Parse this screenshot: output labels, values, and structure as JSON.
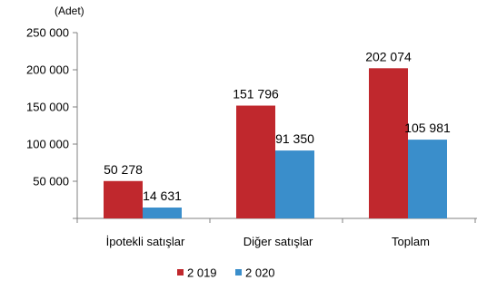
{
  "chart_data": {
    "type": "bar",
    "unit_label": "(Adet)",
    "categories": [
      "İpotekli satışlar",
      "Diğer satışlar",
      "Toplam"
    ],
    "series": [
      {
        "name": "2 019",
        "color": "#C0282D",
        "values": [
          50278,
          151796,
          202074
        ],
        "value_labels": [
          "50 278",
          "151 796",
          "202 074"
        ]
      },
      {
        "name": "2 020",
        "color": "#3A8ECB",
        "values": [
          14631,
          91350,
          105981
        ],
        "value_labels": [
          "14 631",
          "91 350",
          "105 981"
        ]
      }
    ],
    "y_ticks": [
      0,
      50000,
      100000,
      150000,
      200000,
      250000
    ],
    "y_tick_labels": [
      "",
      "50 000",
      "100 000",
      "150 000",
      "200 000",
      "250 000"
    ],
    "ylim": [
      0,
      250000
    ],
    "grid": false,
    "legend_position": "bottom"
  }
}
